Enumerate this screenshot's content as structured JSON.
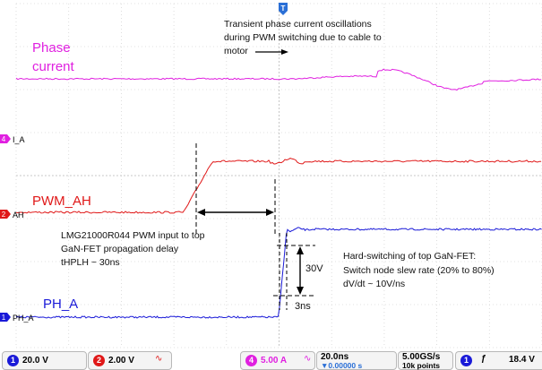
{
  "chart_data": {
    "type": "line",
    "title": "",
    "xlabel": "",
    "ylabel": "",
    "series": [
      {
        "name": "Phase current",
        "channel": "4",
        "color": "#e020e0"
      },
      {
        "name": "PWM_AH",
        "channel": "2",
        "color": "#e01818"
      },
      {
        "name": "PH_A",
        "channel": "1",
        "color": "#1a1ad8"
      }
    ],
    "grid": true
  },
  "traces": {
    "ch4_label": "I_A",
    "ch2_label": "AH",
    "ch1_label": "PH_A",
    "phase_label_line1": "Phase",
    "phase_label_line2": "current",
    "pwm_label": "PWM_AH",
    "ph_label": "PH_A"
  },
  "annotations": {
    "oscillation": [
      "Transient phase current oscillations",
      "during PWM switching due to cable to",
      "motor"
    ],
    "delay": [
      "LMG21000R044 PWM input to top",
      "GaN-FET propagation delay",
      "tHPLH ~ 30ns"
    ],
    "hard_switching": [
      "Hard-switching of top GaN-FET:",
      "Switch node slew rate (20% to 80%)",
      "dV/dt ~ 10V/ns"
    ],
    "voltage": "30V",
    "time": "3ns"
  },
  "status_bar": {
    "ch1_num": "1",
    "ch1_scale": "20.0 V",
    "ch2_num": "2",
    "ch2_scale": "2.00 V",
    "ch4_num": "4",
    "ch4_scale": "5.00 A",
    "timebase": "20.0ns",
    "trigger_pos": "▼0.00000 s",
    "sample_rate": "5.00GS/s",
    "record_length": "10k points",
    "trig_num": "1",
    "trig_slope": "ƒ",
    "trig_level": "18.4 V"
  },
  "colors": {
    "ch1": "#1a1ad8",
    "ch2": "#e01818",
    "ch4": "#e020e0",
    "trigger": "#2a6fd6"
  }
}
